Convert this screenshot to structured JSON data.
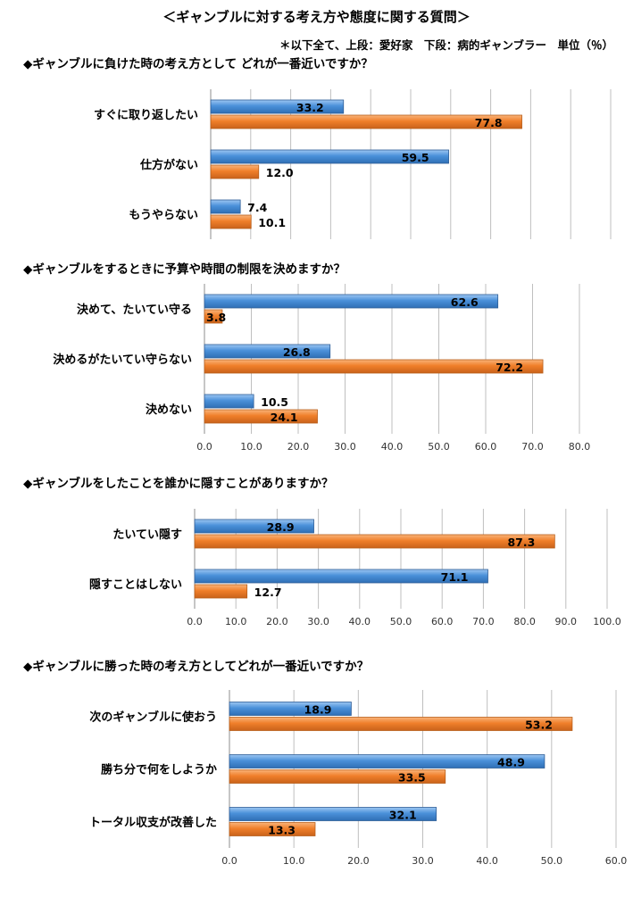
{
  "page": {
    "title": "＜ギャンブルに対する考え方や態度に関する質問＞",
    "note": "＊以下全て、上段：愛好家　下段：病的ギャンブラー　単位（％）"
  },
  "colors": {
    "series_top": "#4A90D9",
    "series_top_edge": "#2F5E97",
    "series_bottom": "#F07F2A",
    "series_bottom_edge": "#B85F1C",
    "grid": "#BFBFBF"
  },
  "chart_data": [
    {
      "type": "bar",
      "orientation": "horizontal",
      "title": "◆ギャンブルに負けた時の考え方として どれが一番近いですか？",
      "categories": [
        "すぐに取り返したい",
        "仕方がない",
        "もうやらない"
      ],
      "series": [
        {
          "values": [
            33.2,
            59.5,
            7.4
          ]
        },
        {
          "values": [
            77.8,
            12.0,
            10.1
          ]
        }
      ],
      "xlim": [
        0,
        100
      ],
      "show_tick_labels": false,
      "grid": true
    },
    {
      "type": "bar",
      "orientation": "horizontal",
      "title": "◆ギャンブルをするときに予算や時間の制限を決めますか？",
      "categories": [
        "決めて、たいてい守る",
        "決めるがたいてい守らない",
        "決めない"
      ],
      "series": [
        {
          "values": [
            62.6,
            26.8,
            10.5
          ]
        },
        {
          "values": [
            3.8,
            72.2,
            24.1
          ]
        }
      ],
      "xlim": [
        0,
        80
      ],
      "ticks": [
        "0.0",
        "10.0",
        "20.0",
        "30.0",
        "40.0",
        "50.0",
        "60.0",
        "70.0",
        "80.0"
      ],
      "show_tick_labels": true,
      "grid": true
    },
    {
      "type": "bar",
      "orientation": "horizontal",
      "title": "◆ギャンブルをしたことを誰かに隠すことがありますか？",
      "categories": [
        "たいてい隠す",
        "隠すことはしない"
      ],
      "series": [
        {
          "values": [
            28.9,
            71.1
          ]
        },
        {
          "values": [
            87.3,
            12.7
          ]
        }
      ],
      "xlim": [
        0,
        100
      ],
      "ticks": [
        "0.0",
        "10.0",
        "20.0",
        "30.0",
        "40.0",
        "50.0",
        "60.0",
        "70.0",
        "80.0",
        "90.0",
        "100.0"
      ],
      "show_tick_labels": true,
      "grid": true
    },
    {
      "type": "bar",
      "orientation": "horizontal",
      "title": "◆ギャンブルに勝った時の考え方としてどれが一番近いですか？",
      "categories": [
        "次のギャンブルに使おう",
        "勝ち分で何をしようか",
        "トータル収支が改善した"
      ],
      "series": [
        {
          "values": [
            18.9,
            48.9,
            32.1
          ]
        },
        {
          "values": [
            53.2,
            33.5,
            13.3
          ]
        }
      ],
      "xlim": [
        0,
        60
      ],
      "ticks": [
        "0.0",
        "10.0",
        "20.0",
        "30.0",
        "40.0",
        "50.0",
        "60.0"
      ],
      "show_tick_labels": true,
      "grid": true
    }
  ]
}
